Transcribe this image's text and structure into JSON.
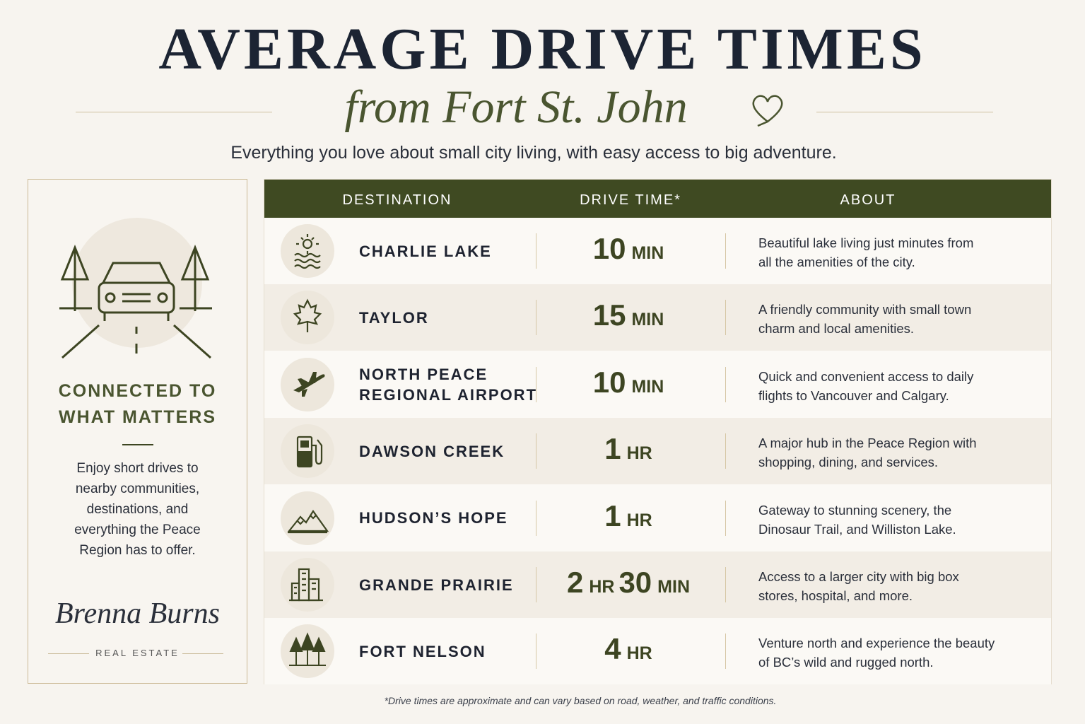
{
  "header": {
    "title": "AVERAGE DRIVE TIMES",
    "subtitle": "from Fort St. John",
    "tagline": "Everything you love about small city living, with easy access to big adventure."
  },
  "sidebar": {
    "heading": [
      "CONNECTED TO",
      "WHAT MATTERS"
    ],
    "body": [
      "Enjoy short drives to",
      "nearby communities,",
      "destinations, and",
      "everything the Peace",
      "Region has to offer."
    ],
    "signature": "Brenna Burns",
    "company": "REAL ESTATE"
  },
  "table": {
    "columns": [
      "DESTINATION",
      "DRIVE TIME*",
      "ABOUT"
    ],
    "rows": [
      {
        "destination": [
          "CHARLIE LAKE"
        ],
        "drive_time": [
          {
            "value": 10,
            "unit": "MIN"
          }
        ],
        "about": [
          "Beautiful lake living just minutes from",
          "all the amenities of the city."
        ]
      },
      {
        "destination": [
          "TAYLOR"
        ],
        "drive_time": [
          {
            "value": 15,
            "unit": "MIN"
          }
        ],
        "about": [
          "A friendly community with small town",
          "charm and local amenities."
        ]
      },
      {
        "destination": [
          "NORTH PEACE",
          "REGIONAL AIRPORT"
        ],
        "drive_time": [
          {
            "value": 10,
            "unit": "MIN"
          }
        ],
        "about": [
          "Quick and convenient access to daily",
          "flights to Vancouver and Calgary."
        ]
      },
      {
        "destination": [
          "DAWSON CREEK"
        ],
        "drive_time": [
          {
            "value": 1,
            "unit": "HR"
          }
        ],
        "about": [
          "A major hub in the Peace Region with",
          "shopping, dining, and services."
        ]
      },
      {
        "destination": [
          "HUDSON’S HOPE"
        ],
        "drive_time": [
          {
            "value": 1,
            "unit": "HR"
          }
        ],
        "about": [
          "Gateway to stunning scenery, the",
          "Dinosaur Trail, and Williston Lake."
        ]
      },
      {
        "destination": [
          "GRANDE PRAIRIE"
        ],
        "drive_time": [
          {
            "value": 2,
            "unit": "HR"
          },
          {
            "value": 30,
            "unit": "MIN"
          }
        ],
        "about": [
          "Access to a larger city with big box",
          "stores, hospital, and more."
        ]
      },
      {
        "destination": [
          "FORT NELSON"
        ],
        "drive_time": [
          {
            "value": 4,
            "unit": "HR"
          }
        ],
        "about": [
          "Venture north and experience the beauty",
          "of BC’s wild and rugged north."
        ]
      }
    ]
  },
  "footnote": "*Drive times are approximate and can vary based on road, weather, and traffic conditions."
}
